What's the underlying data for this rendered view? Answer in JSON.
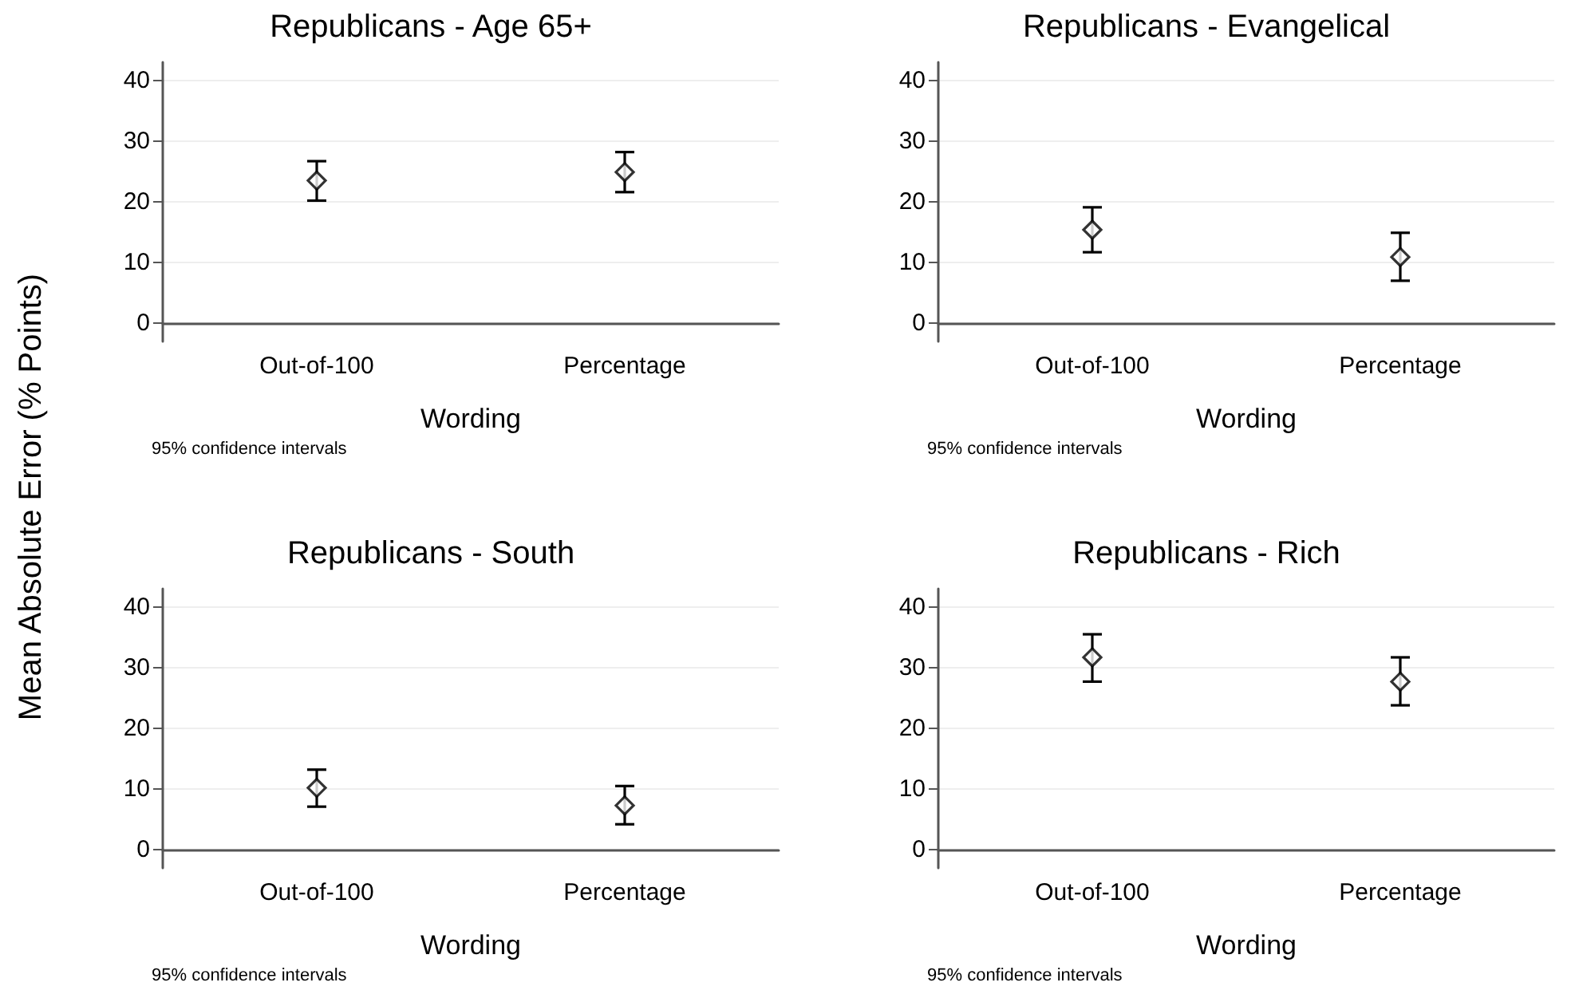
{
  "chart_data": [
    {
      "type": "scatter",
      "title": "Republicans - Age 65+",
      "xlabel": "Wording",
      "ylabel": "Mean Absolute Error (% Points)",
      "annotations": [
        "95% confidence intervals"
      ],
      "categories": [
        "Out-of-100",
        "Percentage"
      ],
      "ylim": [
        -3,
        43
      ],
      "yticks": [
        0,
        10,
        20,
        30,
        40
      ],
      "grid": "y",
      "marker": "diamond",
      "series": [
        {
          "color": "#000000",
          "values": [
            23.5,
            24.9
          ],
          "errors": [
            [
              20.2,
              26.7
            ],
            [
              21.6,
              28.2
            ]
          ]
        }
      ]
    },
    {
      "type": "scatter",
      "title": "Republicans - Evangelical",
      "xlabel": "Wording",
      "annotations": [
        "95% confidence intervals"
      ],
      "categories": [
        "Out-of-100",
        "Percentage"
      ],
      "ylim": [
        -3,
        43
      ],
      "yticks": [
        0,
        10,
        20,
        30,
        40
      ],
      "grid": "y",
      "marker": "diamond",
      "series": [
        {
          "color": "#000000",
          "values": [
            15.4,
            10.9
          ],
          "errors": [
            [
              11.7,
              19.1
            ],
            [
              7.0,
              14.9
            ]
          ]
        }
      ]
    },
    {
      "type": "scatter",
      "title": "Republicans - South",
      "xlabel": "Wording",
      "annotations": [
        "95% confidence intervals"
      ],
      "categories": [
        "Out-of-100",
        "Percentage"
      ],
      "ylim": [
        -3,
        43
      ],
      "yticks": [
        0,
        10,
        20,
        30,
        40
      ],
      "grid": "y",
      "marker": "diamond",
      "series": [
        {
          "color": "#000000",
          "values": [
            10.2,
            7.3
          ],
          "errors": [
            [
              7.1,
              13.2
            ],
            [
              4.2,
              10.5
            ]
          ]
        }
      ]
    },
    {
      "type": "scatter",
      "title": "Republicans - Rich",
      "xlabel": "Wording",
      "annotations": [
        "95% confidence intervals"
      ],
      "categories": [
        "Out-of-100",
        "Percentage"
      ],
      "ylim": [
        -3,
        43
      ],
      "yticks": [
        0,
        10,
        20,
        30,
        40
      ],
      "grid": "y",
      "marker": "diamond",
      "series": [
        {
          "color": "#000000",
          "values": [
            31.7,
            27.7
          ],
          "errors": [
            [
              27.7,
              35.5
            ],
            [
              23.8,
              31.7
            ]
          ]
        }
      ]
    }
  ]
}
